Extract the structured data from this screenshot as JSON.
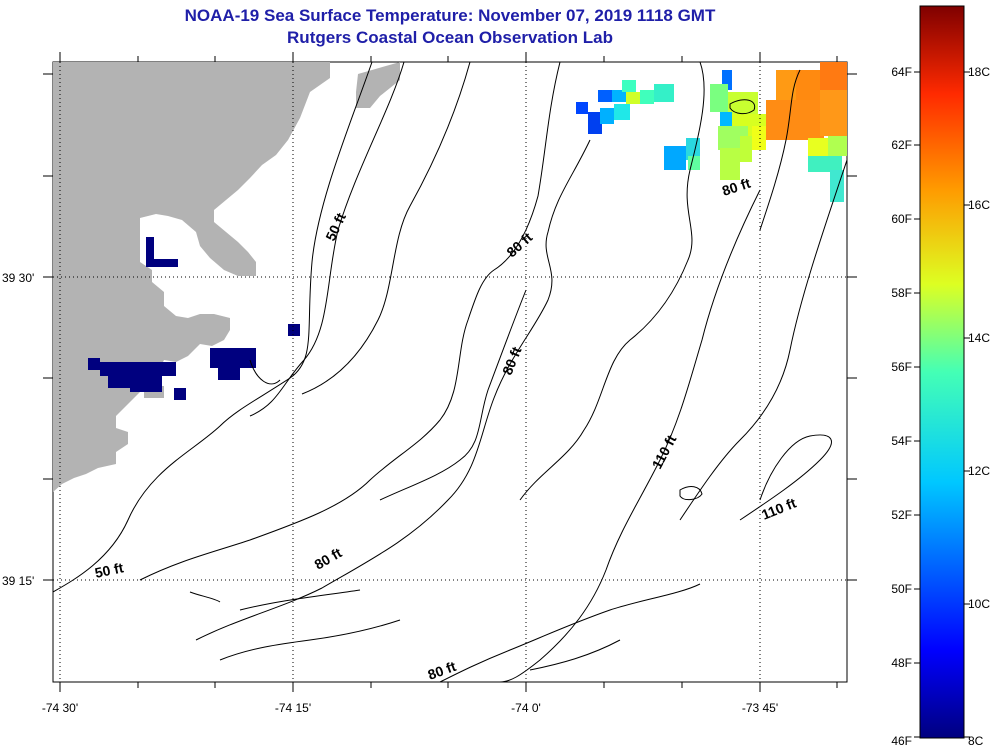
{
  "title": {
    "line1": "NOAA-19 Sea Surface Temperature:  November 07, 2019 1118 GMT",
    "line2": "Rutgers Coastal Ocean Observation Lab"
  },
  "map": {
    "lon_ticks": [
      "-74 30'",
      "-74 15'",
      "-74 0'",
      "-73 45'"
    ],
    "lat_ticks": [
      "39 30'",
      "39 15'"
    ],
    "contour_labels": [
      "50 ft",
      "80 ft",
      "80 ft",
      "80 ft",
      "110 ft",
      "110 ft",
      "80 ft",
      "50 ft",
      "80 ft"
    ]
  },
  "colorbar": {
    "fahrenheit": [
      "64F",
      "62F",
      "60F",
      "58F",
      "56F",
      "54F",
      "52F",
      "50F",
      "48F",
      "46F"
    ],
    "celsius": [
      "18C",
      "16C",
      "14C",
      "12C",
      "10C",
      "8C"
    ]
  },
  "colors": {
    "title": "#1f1fa8",
    "land": "#b3b3b3",
    "cold": "#00007f",
    "warm": "#ff8c14"
  }
}
